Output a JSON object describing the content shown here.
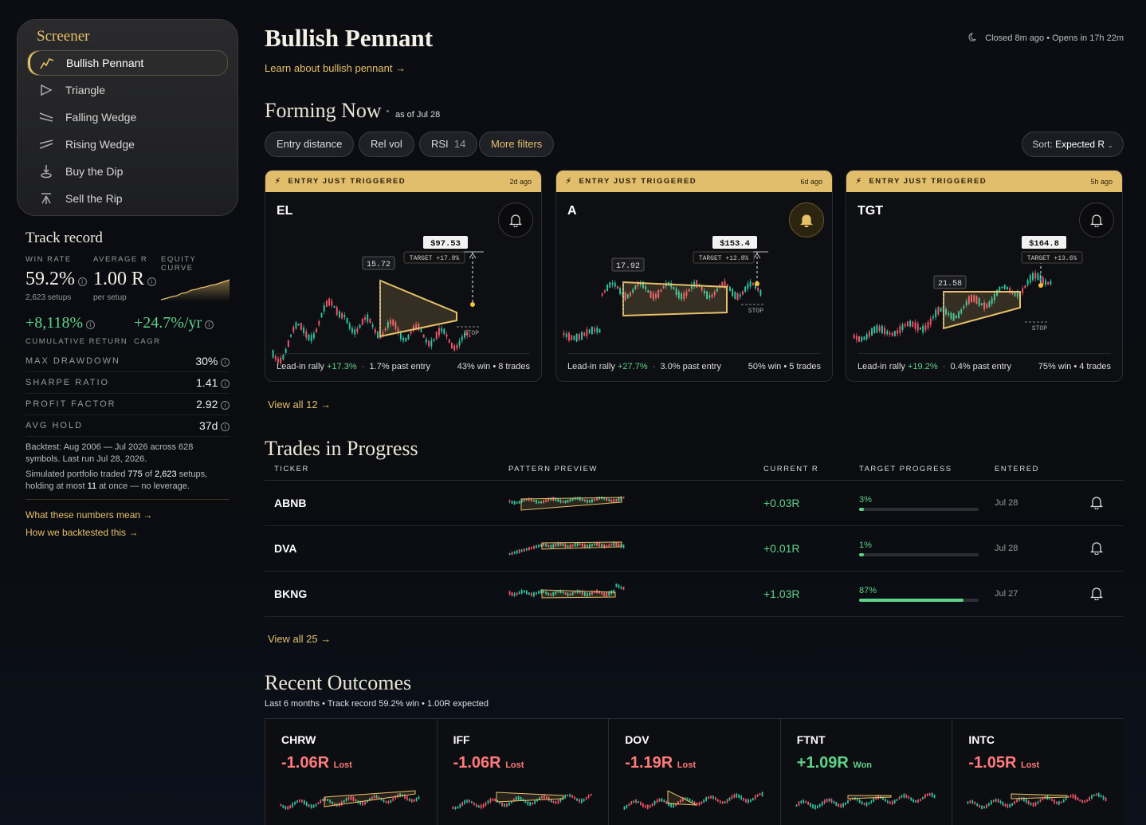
{
  "sidebar": {
    "title": "Screener",
    "items": [
      {
        "label": "Bullish Pennant",
        "active": true
      },
      {
        "label": "Triangle"
      },
      {
        "label": "Falling Wedge"
      },
      {
        "label": "Rising Wedge"
      },
      {
        "label": "Buy the Dip"
      },
      {
        "label": "Sell the Rip"
      }
    ]
  },
  "track": {
    "title": "Track record",
    "win_rate_label": "WIN RATE",
    "avg_r_label": "AVERAGE R",
    "equity_label": "EQUITY CURVE",
    "win_rate": "59.2%",
    "avg_r": "1.00 R",
    "setups": "2,623 setups",
    "per_setup": "per setup",
    "cum_return": "+8,118%",
    "cagr": "+24.7%/yr",
    "cum_label": "CUMULATIVE RETURN",
    "cagr_label": "CAGR",
    "stats": [
      {
        "label": "MAX DRAWDOWN",
        "value": "30%"
      },
      {
        "label": "SHARPE RATIO",
        "value": "1.41"
      },
      {
        "label": "PROFIT FACTOR",
        "value": "2.92"
      },
      {
        "label": "AVG HOLD",
        "value": "37d"
      }
    ],
    "note1": "Backtest: Aug 2006 — Jul 2026 across 628 symbols. Last run Jul 28, 2026.",
    "note2a": "Simulated portfolio traded ",
    "note2b": "775",
    "note2c": " of ",
    "note2d": "2,623",
    "note2e": " setups, holding at most ",
    "note2f": "11",
    "note2g": " at once — no leverage.",
    "link1": "What these numbers mean →",
    "link2": "How we backtested this →"
  },
  "header": {
    "title": "Bullish Pennant",
    "learn": "Learn about bullish pennant →",
    "status": "Closed 8m ago • Opens in 17h 22m"
  },
  "forming": {
    "title": "Forming Now",
    "asof": "as of Jul 28",
    "filters": [
      "Entry distance",
      "Rel vol",
      "RSI",
      "More filters"
    ],
    "rsi_value": "14",
    "sort_prefix": "Sort: ",
    "sort_value": "Expected R",
    "view_all": "View all 12 →"
  },
  "cards": [
    {
      "band": "ENTRY JUST TRIGGERED",
      "ago": "2d ago",
      "ticker": "EL",
      "price": "$97.53",
      "target": "TARGET +17.8%",
      "base": "15.72",
      "stop": "STOP",
      "leadin_label": "Lead-in rally ",
      "leadin": "+17.3%",
      "past": "1.7% past entry",
      "record": "43% win • 8 trades",
      "bell_on": false
    },
    {
      "band": "ENTRY JUST TRIGGERED",
      "ago": "6d ago",
      "ticker": "A",
      "price": "$153.4",
      "target": "TARGET +12.8%",
      "base": "17.92",
      "stop": "STOP",
      "leadin_label": "Lead-in rally ",
      "leadin": "+27.7%",
      "past": "3.0% past entry",
      "record": "50% win • 5 trades",
      "bell_on": true
    },
    {
      "band": "ENTRY JUST TRIGGERED",
      "ago": "5h ago",
      "ticker": "TGT",
      "price": "$164.8",
      "target": "TARGET +13.6%",
      "base": "21.58",
      "stop": "STOP",
      "leadin_label": "Lead-in rally ",
      "leadin": "+19.2%",
      "past": "0.4% past entry",
      "record": "75% win • 4 trades",
      "bell_on": false
    }
  ],
  "progress": {
    "title": "Trades in Progress",
    "headers": [
      "TICKER",
      "PATTERN PREVIEW",
      "CURRENT R",
      "TARGET PROGRESS",
      "ENTERED"
    ],
    "rows": [
      {
        "ticker": "ABNB",
        "r": "+0.03R",
        "progress": "3%",
        "progress_frac": 0.03,
        "entered": "Jul 28"
      },
      {
        "ticker": "DVA",
        "r": "+0.01R",
        "progress": "1%",
        "progress_frac": 0.01,
        "entered": "Jul 28"
      },
      {
        "ticker": "BKNG",
        "r": "+1.03R",
        "progress": "87%",
        "progress_frac": 0.87,
        "entered": "Jul 27"
      }
    ],
    "view_all": "View all 25 →"
  },
  "outcomes": {
    "title": "Recent Outcomes",
    "subtitle": "Last 6 months • Track record 59.2% win • 1.00R expected",
    "items": [
      {
        "ticker": "CHRW",
        "r": "-1.06R",
        "result": "Lost"
      },
      {
        "ticker": "IFF",
        "r": "-1.06R",
        "result": "Lost"
      },
      {
        "ticker": "DOV",
        "r": "-1.19R",
        "result": "Lost"
      },
      {
        "ticker": "FTNT",
        "r": "+1.09R",
        "result": "Won"
      },
      {
        "ticker": "INTC",
        "r": "-1.05R",
        "result": "Lost"
      }
    ]
  },
  "colors": {
    "gold": "#e6c06a",
    "green": "#5fd38a",
    "red": "#ff7b7b",
    "background": "#0b0d12"
  },
  "icons": [
    "pennant-icon",
    "triangle-icon",
    "falling-wedge-icon",
    "rising-wedge-icon",
    "buy-dip-icon",
    "sell-rip-icon",
    "moon-icon",
    "bolt-icon",
    "bell-icon",
    "info-icon",
    "chevron-down-icon",
    "arrow-right-icon"
  ]
}
